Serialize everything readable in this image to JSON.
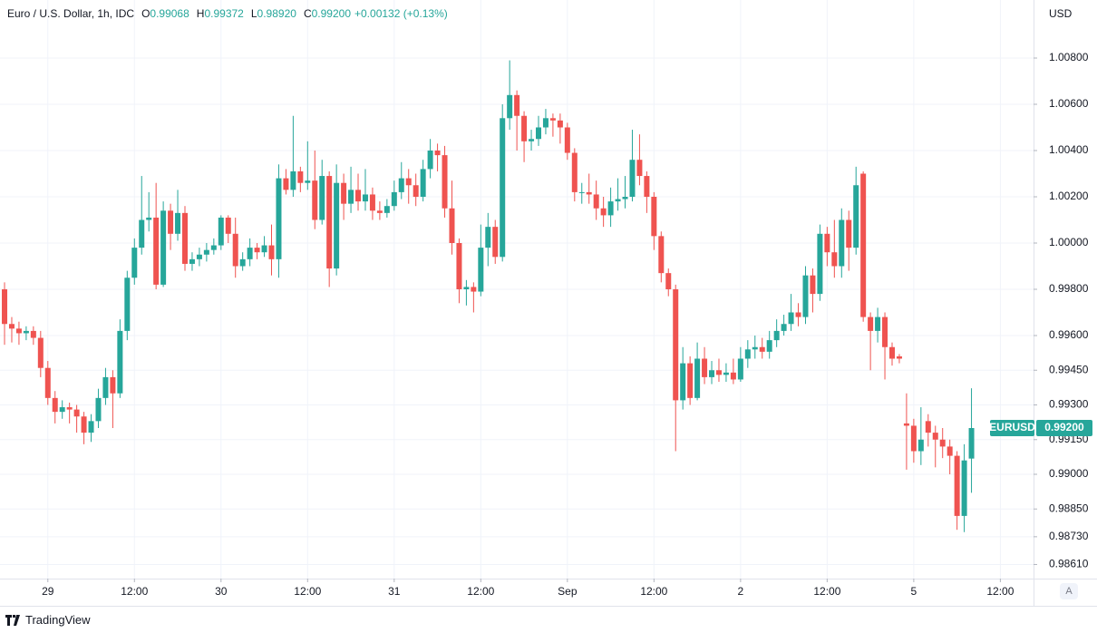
{
  "chart_data": {
    "type": "candlestick",
    "title": "Euro / U.S. Dollar, 1h, IDC",
    "header_values": [
      {
        "label": "O",
        "value": "0.99068"
      },
      {
        "label": "H",
        "value": "0.99372"
      },
      {
        "label": "L",
        "value": "0.98920"
      },
      {
        "label": "C",
        "value": "0.99200"
      }
    ],
    "change": "+0.00132 (+0.13%)",
    "y_axis_label": "USD",
    "symbol_tag": "EURUSD",
    "last_price_label": "0.99200",
    "auto_scale_button": "A",
    "brand": "TradingView",
    "up_color": "#26a69a",
    "down_color": "#ef5350",
    "grid": true,
    "ylim": [
      0.98549,
      1.01051
    ],
    "yticks": [
      {
        "value": 1.008,
        "label": "1.00800"
      },
      {
        "value": 1.006,
        "label": "1.00600"
      },
      {
        "value": 1.004,
        "label": "1.00400"
      },
      {
        "value": 1.002,
        "label": "1.00200"
      },
      {
        "value": 1.0,
        "label": "1.00000"
      },
      {
        "value": 0.998,
        "label": "0.99800"
      },
      {
        "value": 0.996,
        "label": "0.99600"
      },
      {
        "value": 0.9945,
        "label": "0.99450"
      },
      {
        "value": 0.993,
        "label": "0.99300"
      },
      {
        "value": 0.9915,
        "label": "0.99150"
      },
      {
        "value": 0.99,
        "label": "0.99000"
      },
      {
        "value": 0.9885,
        "label": "0.98850"
      },
      {
        "value": 0.9873,
        "label": "0.98730"
      },
      {
        "value": 0.9861,
        "label": "0.98610"
      }
    ],
    "xlim": [
      -0.63,
      142.6
    ],
    "xticks": [
      {
        "value": 6,
        "label": "29"
      },
      {
        "value": 18,
        "label": "12:00"
      },
      {
        "value": 30,
        "label": "30"
      },
      {
        "value": 42,
        "label": "12:00"
      },
      {
        "value": 54,
        "label": "31"
      },
      {
        "value": 66,
        "label": "12:00"
      },
      {
        "value": 78,
        "label": "Sep"
      },
      {
        "value": 90,
        "label": "12:00"
      },
      {
        "value": 102,
        "label": "2"
      },
      {
        "value": 114,
        "label": "12:00"
      },
      {
        "value": 126,
        "label": "5"
      },
      {
        "value": 138,
        "label": "12:00"
      }
    ],
    "candles": [
      [
        0.998,
        0.9983,
        0.9956,
        0.9965
      ],
      [
        0.9965,
        0.9968,
        0.9957,
        0.9963
      ],
      [
        0.9963,
        0.9966,
        0.9956,
        0.9961
      ],
      [
        0.9961,
        0.9964,
        0.9958,
        0.9962
      ],
      [
        0.9962,
        0.9964,
        0.9956,
        0.9959
      ],
      [
        0.9959,
        0.9962,
        0.9942,
        0.9946
      ],
      [
        0.9946,
        0.9949,
        0.993,
        0.9933
      ],
      [
        0.9933,
        0.9936,
        0.9922,
        0.9927
      ],
      [
        0.9927,
        0.9932,
        0.9924,
        0.9929
      ],
      [
        0.9929,
        0.9931,
        0.9922,
        0.9928
      ],
      [
        0.9928,
        0.993,
        0.9918,
        0.9925
      ],
      [
        0.9925,
        0.9927,
        0.9913,
        0.9918
      ],
      [
        0.9918,
        0.9926,
        0.9914,
        0.9923
      ],
      [
        0.9923,
        0.9937,
        0.992,
        0.9933
      ],
      [
        0.9933,
        0.9946,
        0.993,
        0.9942
      ],
      [
        0.9942,
        0.9945,
        0.992,
        0.9935
      ],
      [
        0.9935,
        0.9967,
        0.9933,
        0.9962
      ],
      [
        0.9962,
        0.9988,
        0.9958,
        0.9985
      ],
      [
        0.9985,
        1.0002,
        0.9982,
        0.9998
      ],
      [
        0.9998,
        1.0029,
        0.9995,
        1.001
      ],
      [
        1.001,
        1.0022,
        1.0005,
        1.0011
      ],
      [
        1.0011,
        1.0026,
        0.998,
        0.9982
      ],
      [
        0.9982,
        1.0018,
        0.9981,
        1.0014
      ],
      [
        1.0014,
        1.0017,
        0.9997,
        1.0004
      ],
      [
        1.0004,
        1.0023,
        1.0001,
        1.0013
      ],
      [
        1.0013,
        1.0016,
        0.9988,
        0.9991
      ],
      [
        0.9991,
        0.9996,
        0.9988,
        0.9993
      ],
      [
        0.9993,
        0.9998,
        0.999,
        0.9995
      ],
      [
        0.9995,
        1.0,
        0.9992,
        0.9997
      ],
      [
        0.9997,
        1.0002,
        0.9995,
        0.9999
      ],
      [
        0.9999,
        1.0012,
        0.9997,
        1.0011
      ],
      [
        1.0011,
        1.0012,
        1.0,
        1.0004
      ],
      [
        1.0004,
        1.0011,
        0.9985,
        0.999
      ],
      [
        0.999,
        0.9996,
        0.9988,
        0.9993
      ],
      [
        0.9993,
        1.0002,
        0.999,
        0.9998
      ],
      [
        0.9998,
        1.0,
        0.9993,
        0.9996
      ],
      [
        0.9996,
        1.0003,
        0.9994,
        0.9999
      ],
      [
        0.9999,
        1.0008,
        0.9986,
        0.9993
      ],
      [
        0.9993,
        1.0034,
        0.9985,
        1.0028
      ],
      [
        1.0028,
        1.0032,
        1.0021,
        1.0023
      ],
      [
        1.0023,
        1.0055,
        1.002,
        1.0031
      ],
      [
        1.0031,
        1.0033,
        1.0022,
        1.0026
      ],
      [
        1.0026,
        1.0044,
        1.0023,
        1.0027
      ],
      [
        1.0027,
        1.004,
        1.0006,
        1.001
      ],
      [
        1.001,
        1.0036,
        1.0008,
        1.0029
      ],
      [
        1.0029,
        1.0031,
        0.9981,
        0.9989
      ],
      [
        0.9989,
        1.0034,
        0.9986,
        1.0026
      ],
      [
        1.0026,
        1.003,
        1.001,
        1.0017
      ],
      [
        1.0017,
        1.0033,
        1.0013,
        1.0023
      ],
      [
        1.0023,
        1.003,
        1.0014,
        1.0018
      ],
      [
        1.0018,
        1.0032,
        1.0014,
        1.0021
      ],
      [
        1.0021,
        1.0024,
        1.001,
        1.0014
      ],
      [
        1.0014,
        1.0018,
        1.001,
        1.0013
      ],
      [
        1.0013,
        1.0019,
        1.0011,
        1.0016
      ],
      [
        1.0016,
        1.0027,
        1.0014,
        1.0022
      ],
      [
        1.0022,
        1.0035,
        1.0019,
        1.0028
      ],
      [
        1.0028,
        1.0032,
        1.0017,
        1.0025
      ],
      [
        1.0025,
        1.003,
        1.0016,
        1.002
      ],
      [
        1.002,
        1.0036,
        1.0018,
        1.0032
      ],
      [
        1.0032,
        1.0045,
        1.0028,
        1.004
      ],
      [
        1.004,
        1.0043,
        1.0031,
        1.0038
      ],
      [
        1.0038,
        1.0042,
        1.0011,
        1.0015
      ],
      [
        1.0015,
        1.0027,
        0.9995,
        1.0
      ],
      [
        1.0,
        1.0002,
        0.9974,
        0.998
      ],
      [
        0.998,
        0.9984,
        0.9973,
        0.9981
      ],
      [
        0.9981,
        0.9983,
        0.997,
        0.9979
      ],
      [
        0.9979,
        1.0008,
        0.9977,
        0.9998
      ],
      [
        0.9998,
        1.0013,
        0.999,
        1.0007
      ],
      [
        1.0007,
        1.001,
        0.9991,
        0.9994
      ],
      [
        0.9994,
        1.006,
        0.9992,
        1.0054
      ],
      [
        1.0054,
        1.0079,
        1.0049,
        1.0064
      ],
      [
        1.0064,
        1.0066,
        1.004,
        1.0055
      ],
      [
        1.0055,
        1.0057,
        1.0035,
        1.0044
      ],
      [
        1.0044,
        1.0049,
        1.004,
        1.0045
      ],
      [
        1.0045,
        1.0055,
        1.0042,
        1.005
      ],
      [
        1.005,
        1.0058,
        1.0047,
        1.0054
      ],
      [
        1.0054,
        1.0056,
        1.0046,
        1.0053
      ],
      [
        1.0053,
        1.0056,
        1.0043,
        1.005
      ],
      [
        1.005,
        1.0052,
        1.0036,
        1.0039
      ],
      [
        1.0039,
        1.0041,
        1.0018,
        1.0022
      ],
      [
        1.0022,
        1.0026,
        1.0017,
        1.0022
      ],
      [
        1.0022,
        1.003,
        1.0017,
        1.0021
      ],
      [
        1.0021,
        1.0027,
        1.001,
        1.0015
      ],
      [
        1.0015,
        1.002,
        1.0007,
        1.0012
      ],
      [
        1.0012,
        1.0024,
        1.0007,
        1.0018
      ],
      [
        1.0018,
        1.0028,
        1.0014,
        1.0019
      ],
      [
        1.0019,
        1.0029,
        1.0015,
        1.002
      ],
      [
        1.002,
        1.0049,
        1.0018,
        1.0036
      ],
      [
        1.0036,
        1.0047,
        1.0025,
        1.0029
      ],
      [
        1.0029,
        1.0031,
        1.0013,
        1.002
      ],
      [
        1.002,
        1.0022,
        0.9997,
        1.0003
      ],
      [
        1.0003,
        1.0005,
        0.9983,
        0.9987
      ],
      [
        0.9987,
        0.9989,
        0.9977,
        0.998
      ],
      [
        0.998,
        0.9982,
        0.991,
        0.9932
      ],
      [
        0.9932,
        0.9955,
        0.9928,
        0.9948
      ],
      [
        0.9948,
        0.9951,
        0.993,
        0.9933
      ],
      [
        0.9933,
        0.9957,
        0.9932,
        0.995
      ],
      [
        0.995,
        0.9955,
        0.9939,
        0.9942
      ],
      [
        0.9942,
        0.9949,
        0.9939,
        0.9945
      ],
      [
        0.9945,
        0.995,
        0.994,
        0.9943
      ],
      [
        0.9943,
        0.9948,
        0.994,
        0.9944
      ],
      [
        0.9944,
        0.995,
        0.9939,
        0.9941
      ],
      [
        0.9941,
        0.9955,
        0.994,
        0.995
      ],
      [
        0.995,
        0.9958,
        0.9946,
        0.9954
      ],
      [
        0.9954,
        0.996,
        0.995,
        0.9955
      ],
      [
        0.9955,
        0.9959,
        0.995,
        0.9953
      ],
      [
        0.9953,
        0.9962,
        0.995,
        0.9958
      ],
      [
        0.9958,
        0.9967,
        0.9955,
        0.9962
      ],
      [
        0.9962,
        0.9969,
        0.996,
        0.9965
      ],
      [
        0.9965,
        0.9978,
        0.9962,
        0.997
      ],
      [
        0.997,
        0.9974,
        0.9964,
        0.9968
      ],
      [
        0.9968,
        0.999,
        0.9965,
        0.9986
      ],
      [
        0.9986,
        0.9989,
        0.997,
        0.9978
      ],
      [
        0.9978,
        1.0008,
        0.9975,
        1.0004
      ],
      [
        1.0004,
        1.0007,
        0.999,
        0.9996
      ],
      [
        0.9996,
        1.001,
        0.9985,
        0.999
      ],
      [
        0.999,
        1.0015,
        0.9985,
        1.001
      ],
      [
        1.001,
        1.0014,
        0.9988,
        0.9998
      ],
      [
        0.9998,
        1.0033,
        0.9995,
        1.0025
      ],
      [
        1.003,
        1.0031,
        0.9966,
        0.9968
      ],
      [
        0.9968,
        0.997,
        0.9945,
        0.9962
      ],
      [
        0.9962,
        0.9972,
        0.9957,
        0.9968
      ],
      [
        0.9968,
        0.997,
        0.9941,
        0.9955
      ],
      [
        0.9955,
        0.9957,
        0.9947,
        0.995
      ],
      [
        0.9951,
        0.9952,
        0.9948,
        0.995
      ],
      [
        0.9922,
        0.9935,
        0.9902,
        0.9921
      ],
      [
        0.9921,
        0.9924,
        0.9905,
        0.991
      ],
      [
        0.991,
        0.9929,
        0.9904,
        0.9915
      ],
      [
        0.9923,
        0.9926,
        0.9912,
        0.9918
      ],
      [
        0.9918,
        0.9921,
        0.9903,
        0.9915
      ],
      [
        0.9915,
        0.992,
        0.9907,
        0.9912
      ],
      [
        0.9912,
        0.9915,
        0.99,
        0.9908
      ],
      [
        0.9908,
        0.991,
        0.9876,
        0.9882
      ],
      [
        0.9882,
        0.9913,
        0.9875,
        0.9906
      ],
      [
        0.99068,
        0.99372,
        0.9892,
        0.992
      ]
    ]
  }
}
